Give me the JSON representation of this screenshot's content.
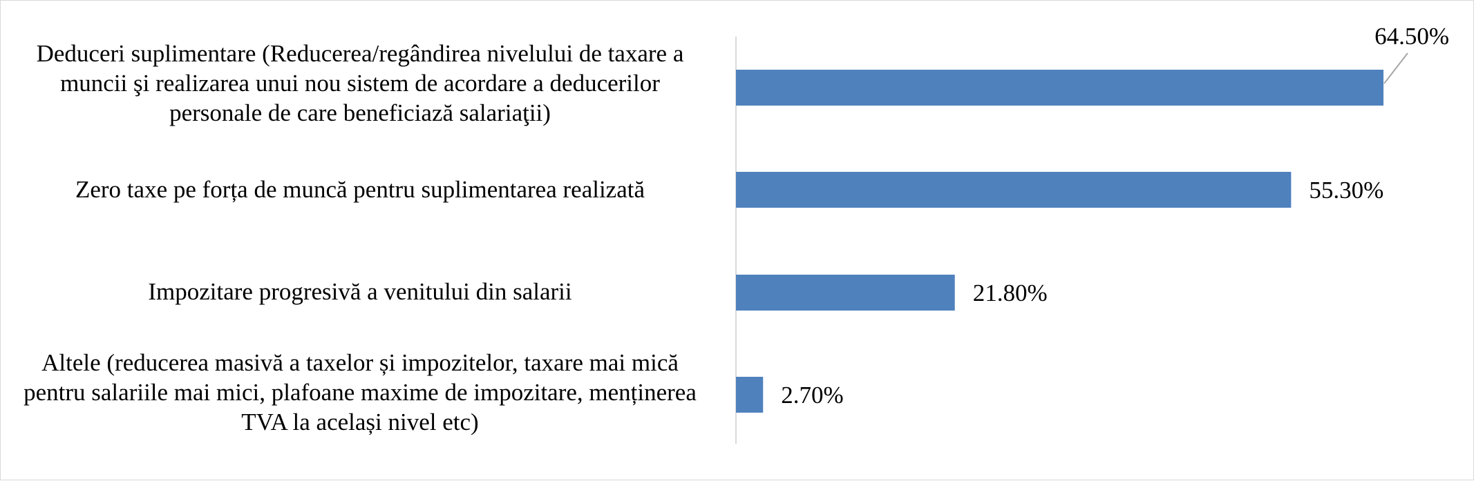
{
  "chart_data": {
    "type": "bar",
    "orientation": "horizontal",
    "categories": [
      "Deduceri suplimentare (Reducerea/regândirea nivelului de taxare a muncii şi realizarea unui nou sistem de acordare a deducerilor personale de care beneficiază salariaţii)",
      "Zero taxe pe forța de muncă pentru suplimentarea realizată",
      "Impozitare progresivă a venitului din salarii",
      "Altele (reducerea masivă a taxelor și impozitelor, taxare mai mică pentru salariile mai mici, plafoane maxime de impozitare, menținerea TVA la același nivel etc)"
    ],
    "values": [
      64.5,
      55.3,
      21.8,
      2.7
    ],
    "data_labels": [
      "64.50%",
      "55.30%",
      "21.80%",
      "2.70%"
    ],
    "xlim": [
      0,
      70
    ],
    "grid": false,
    "legend": "none",
    "bar_color": "#4f81bd",
    "axis_color": "#d9d9d9",
    "leader_line_color": "#a6a6a6"
  }
}
